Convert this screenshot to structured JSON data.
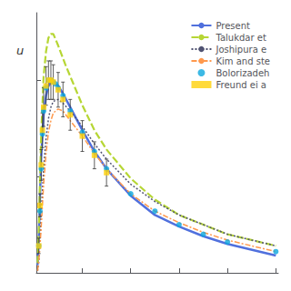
{
  "chart_data": {
    "type": "line",
    "annotations": [
      "u"
    ],
    "xlim": [
      10,
      1010
    ],
    "ylim": [
      0.0,
      1.35
    ],
    "xticks": [
      200,
      400,
      600,
      800,
      1000
    ],
    "yticks": [
      0,
      0.5,
      1
    ],
    "tick_labels": false,
    "grid": false,
    "legend": "upper right",
    "series": [
      {
        "name": "Present",
        "type": "line",
        "line_style": "solid",
        "x": [
          15,
          20,
          25,
          30,
          40,
          50,
          60,
          70,
          80,
          100,
          120,
          150,
          200,
          250,
          300,
          400,
          500,
          600,
          700,
          800,
          1000
        ],
        "values": [
          0.04,
          0.18,
          0.4,
          0.6,
          0.82,
          0.92,
          0.97,
          0.99,
          0.99,
          0.97,
          0.93,
          0.86,
          0.74,
          0.63,
          0.54,
          0.4,
          0.3,
          0.24,
          0.19,
          0.15,
          0.09
        ]
      },
      {
        "name": "Talukdar et",
        "type": "line",
        "line_style": "dashed",
        "x": [
          15,
          20,
          25,
          30,
          40,
          50,
          60,
          70,
          80,
          100,
          130,
          160,
          200,
          250,
          300,
          400,
          500,
          600,
          700,
          800,
          1000
        ],
        "values": [
          0.05,
          0.22,
          0.48,
          0.72,
          1.02,
          1.15,
          1.22,
          1.24,
          1.24,
          1.18,
          1.08,
          0.99,
          0.87,
          0.74,
          0.64,
          0.49,
          0.38,
          0.3,
          0.25,
          0.2,
          0.14
        ]
      },
      {
        "name": "Joshipura e",
        "type": "line",
        "line_style": "dotted",
        "x": [
          15,
          20,
          25,
          30,
          40,
          50,
          60,
          70,
          80,
          100,
          120,
          150,
          200,
          250,
          300,
          400,
          500,
          600,
          700,
          800,
          1000
        ],
        "values": [
          0.01,
          0.06,
          0.16,
          0.3,
          0.54,
          0.7,
          0.8,
          0.86,
          0.89,
          0.9,
          0.88,
          0.84,
          0.76,
          0.67,
          0.59,
          0.46,
          0.37,
          0.3,
          0.25,
          0.2,
          0.14
        ]
      },
      {
        "name": "Kim and ste",
        "type": "line",
        "line_style": "dashdot",
        "x": [
          15,
          20,
          25,
          30,
          40,
          50,
          60,
          70,
          80,
          100,
          120,
          150,
          200,
          250,
          300,
          400,
          500,
          600,
          700,
          800,
          1000
        ],
        "values": [
          0.01,
          0.06,
          0.14,
          0.24,
          0.46,
          0.62,
          0.73,
          0.79,
          0.83,
          0.85,
          0.84,
          0.79,
          0.71,
          0.62,
          0.54,
          0.41,
          0.32,
          0.26,
          0.21,
          0.17,
          0.11
        ]
      },
      {
        "name": "Bolorizadeh",
        "type": "scatter",
        "marker": "circle",
        "x": [
          20,
          25,
          30,
          35,
          40,
          50,
          60,
          70,
          80,
          90,
          100,
          120,
          150,
          200,
          250,
          300,
          400,
          500,
          600,
          700,
          800,
          1000
        ],
        "values": [
          0.14,
          0.32,
          0.54,
          0.72,
          0.84,
          0.96,
          1.0,
          1.0,
          0.99,
          0.98,
          0.96,
          0.92,
          0.84,
          0.73,
          0.63,
          0.54,
          0.41,
          0.32,
          0.25,
          0.2,
          0.16,
          0.11
        ]
      },
      {
        "name": "Freund ei a",
        "type": "scatter",
        "marker": "square",
        "x": [
          20,
          25,
          30,
          35,
          40,
          50,
          60,
          70,
          80,
          100,
          120,
          150,
          200,
          250,
          300
        ],
        "values": [
          0.14,
          0.35,
          0.56,
          0.74,
          0.86,
          0.97,
          1.0,
          1.0,
          0.99,
          0.95,
          0.9,
          0.82,
          0.71,
          0.61,
          0.52
        ],
        "errors": [
          0.04,
          0.06,
          0.08,
          0.09,
          0.1,
          0.1,
          0.1,
          0.1,
          0.09,
          0.09,
          0.09,
          0.08,
          0.08,
          0.07,
          0.07
        ]
      }
    ]
  }
}
